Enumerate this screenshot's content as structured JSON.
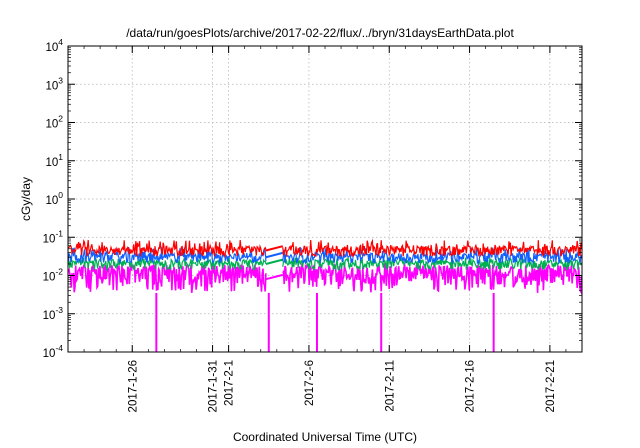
{
  "chart_data": {
    "type": "line",
    "title": "/data/run/goesPlots/archive/2017-02-22/flux/../bryn/31daysEarthData.plot",
    "xlabel": "Coordinated Universal Time (UTC)",
    "ylabel": "cGy/day",
    "yscale": "log",
    "ylim": [
      0.0001,
      10000
    ],
    "xlim": [
      "2017-01-22",
      "2017-02-23"
    ],
    "grid": true,
    "legend": "none",
    "y_ticks": [
      {
        "value": 10000,
        "base": "10",
        "exp": "4"
      },
      {
        "value": 1000,
        "base": "10",
        "exp": "3"
      },
      {
        "value": 100,
        "base": "10",
        "exp": "2"
      },
      {
        "value": 10,
        "base": "10",
        "exp": "1"
      },
      {
        "value": 1,
        "base": "10",
        "exp": "0"
      },
      {
        "value": 0.1,
        "base": "10",
        "exp": "-1"
      },
      {
        "value": 0.01,
        "base": "10",
        "exp": "-2"
      },
      {
        "value": 0.001,
        "base": "10",
        "exp": "-3"
      },
      {
        "value": 0.0001,
        "base": "10",
        "exp": "-4"
      }
    ],
    "x_ticks": [
      {
        "date": "2017-01-26",
        "label": "2017-1-26"
      },
      {
        "date": "2017-01-31",
        "label": "2017-1-31"
      },
      {
        "date": "2017-02-01",
        "label": "2017-2-1"
      },
      {
        "date": "2017-02-06",
        "label": "2017-2-6"
      },
      {
        "date": "2017-02-11",
        "label": "2017-2-11"
      },
      {
        "date": "2017-02-16",
        "label": "2017-2-16"
      },
      {
        "date": "2017-02-21",
        "label": "2017-2-21"
      }
    ],
    "data_gaps": [
      [
        "2017-02-03",
        "2017-02-04"
      ]
    ],
    "series": [
      {
        "color": "#ff0000",
        "typical": 0.045,
        "spike_max": 0.085
      },
      {
        "color": "#1060ff",
        "typical": 0.03,
        "spike_max": 0.055
      },
      {
        "color": "#00b050",
        "typical": 0.02,
        "spike_max": 0.03
      },
      {
        "color": "#ff00ff",
        "typical": 0.008,
        "low": 0.0035,
        "drops_to": 0.0001,
        "drop_dates": [
          "2017-01-27",
          "2017-02-03",
          "2017-02-06",
          "2017-02-10",
          "2017-02-17"
        ]
      }
    ]
  }
}
